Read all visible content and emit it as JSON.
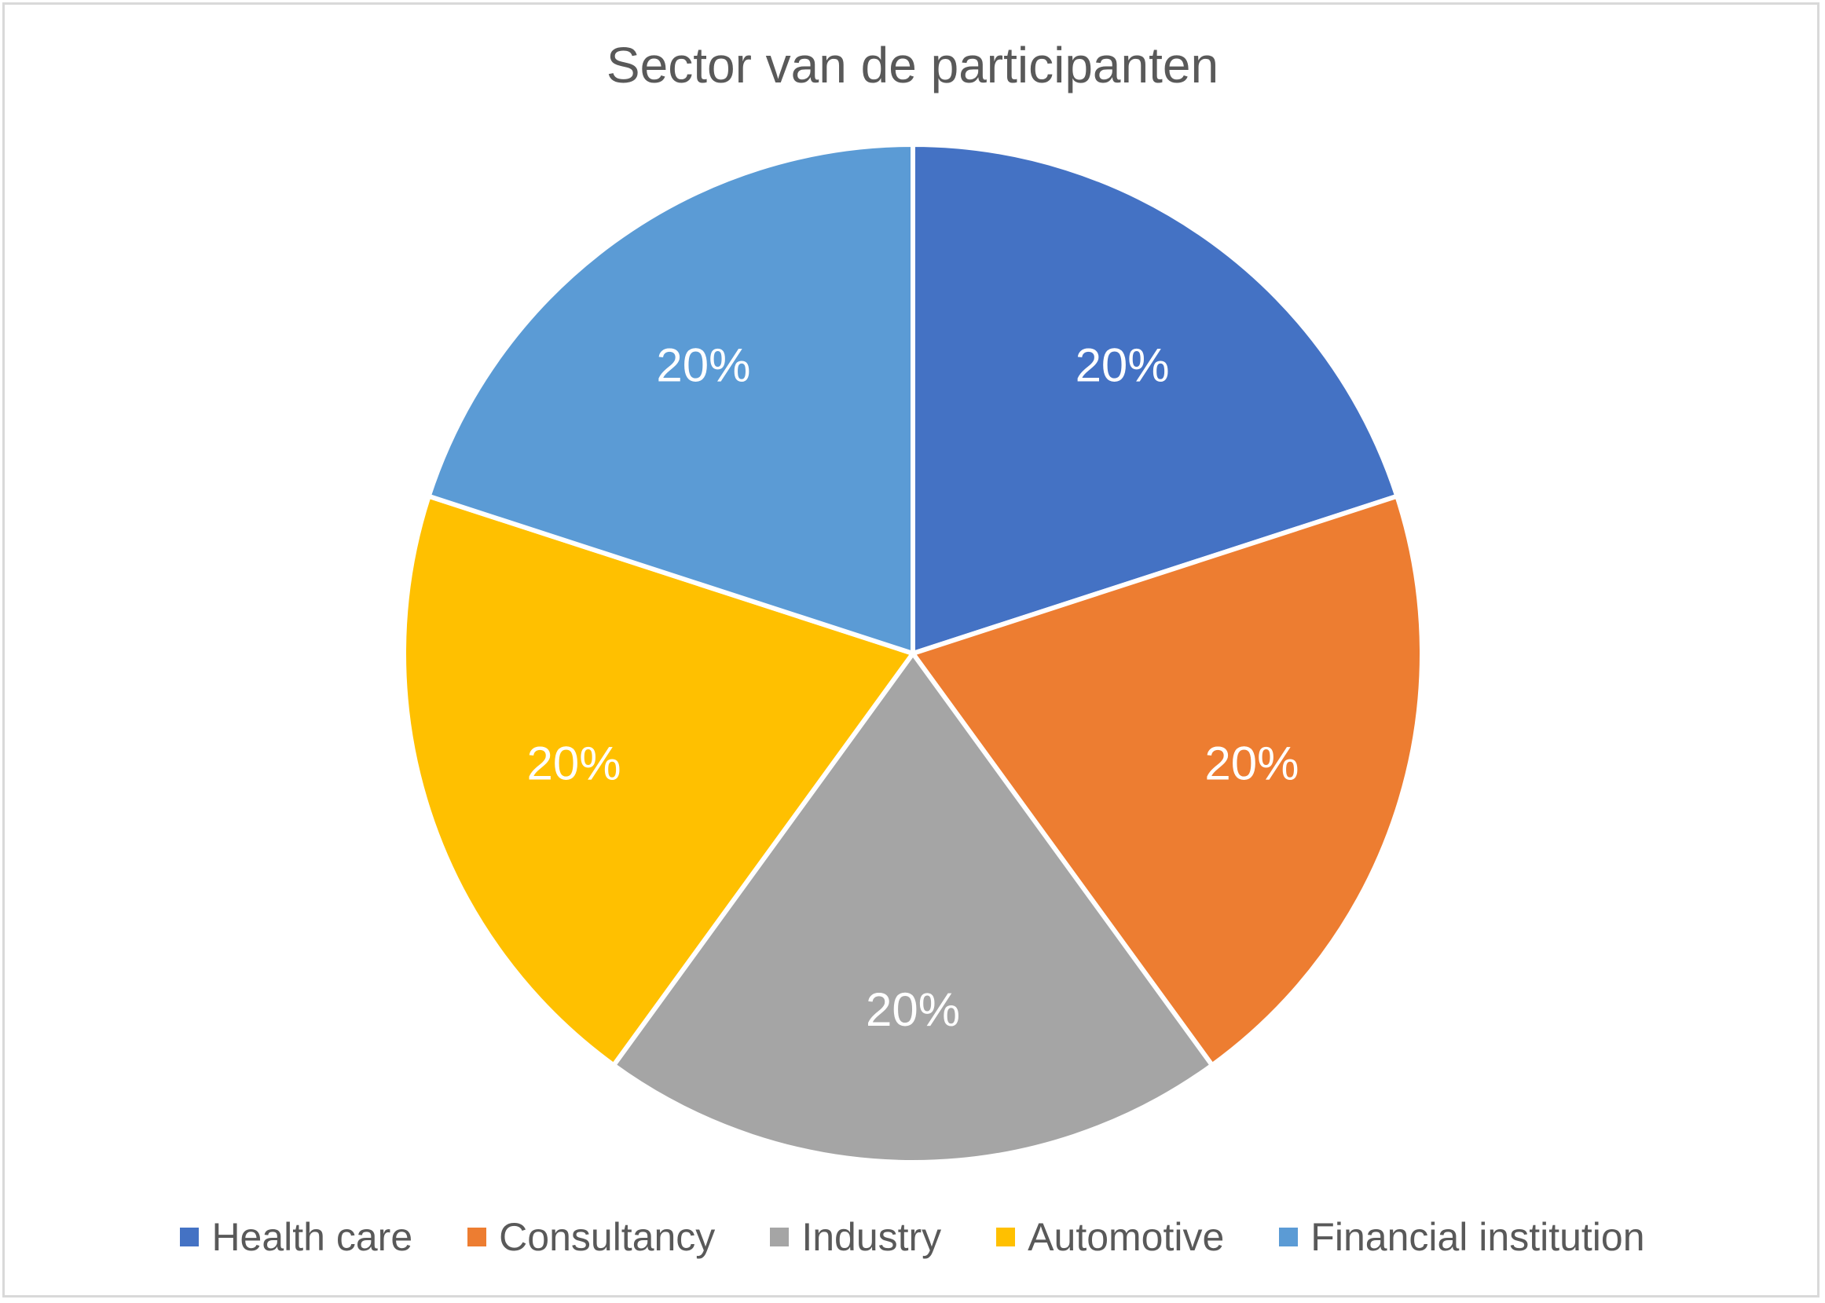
{
  "chart_data": {
    "type": "pie",
    "title": "Sector van de participanten",
    "categories": [
      "Health care",
      "Consultancy",
      "Industry",
      "Automotive",
      "Financial institution"
    ],
    "values": [
      20,
      20,
      20,
      20,
      20
    ],
    "labels": [
      "20%",
      "20%",
      "20%",
      "20%",
      "20%"
    ],
    "colors": [
      "#4472C4",
      "#ED7D31",
      "#A5A5A5",
      "#FFC000",
      "#5B9BD5"
    ],
    "legend_position": "bottom",
    "start_angle": "12 o'clock, clockwise"
  }
}
